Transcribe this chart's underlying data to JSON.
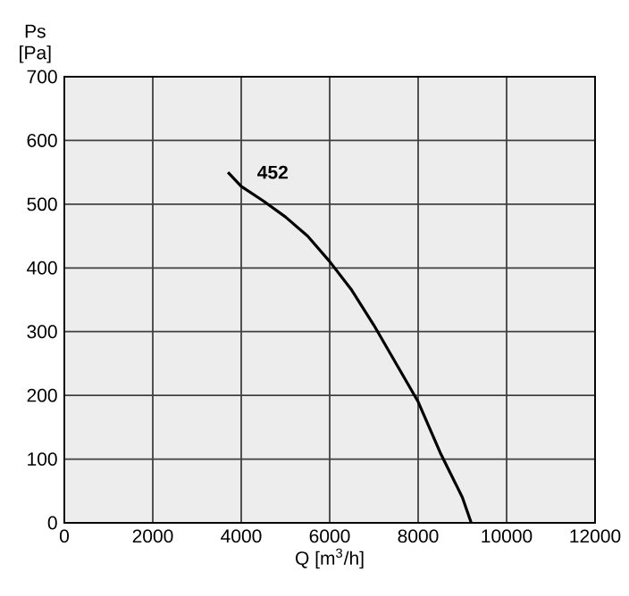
{
  "chart_data": {
    "type": "line",
    "xlabel": "Q [m$^{3}$/h]",
    "ylabel": "Ps [Pa]",
    "series": [
      {
        "name": "452",
        "color": "#000000",
        "x": [
          3700,
          4000,
          4500,
          5000,
          5500,
          6000,
          6500,
          7000,
          7500,
          8000,
          8500,
          9000,
          9200
        ],
        "values": [
          550,
          528,
          505,
          480,
          450,
          410,
          365,
          310,
          250,
          190,
          110,
          40,
          0
        ]
      }
    ],
    "xlim": [
      0,
      12000
    ],
    "ylim": [
      0,
      700
    ],
    "xticks": [
      0,
      2000,
      4000,
      6000,
      8000,
      10000,
      12000
    ],
    "yticks": [
      0,
      100,
      200,
      300,
      400,
      500,
      600,
      700
    ],
    "grid": true,
    "marker": "none",
    "line_style": "solid"
  }
}
